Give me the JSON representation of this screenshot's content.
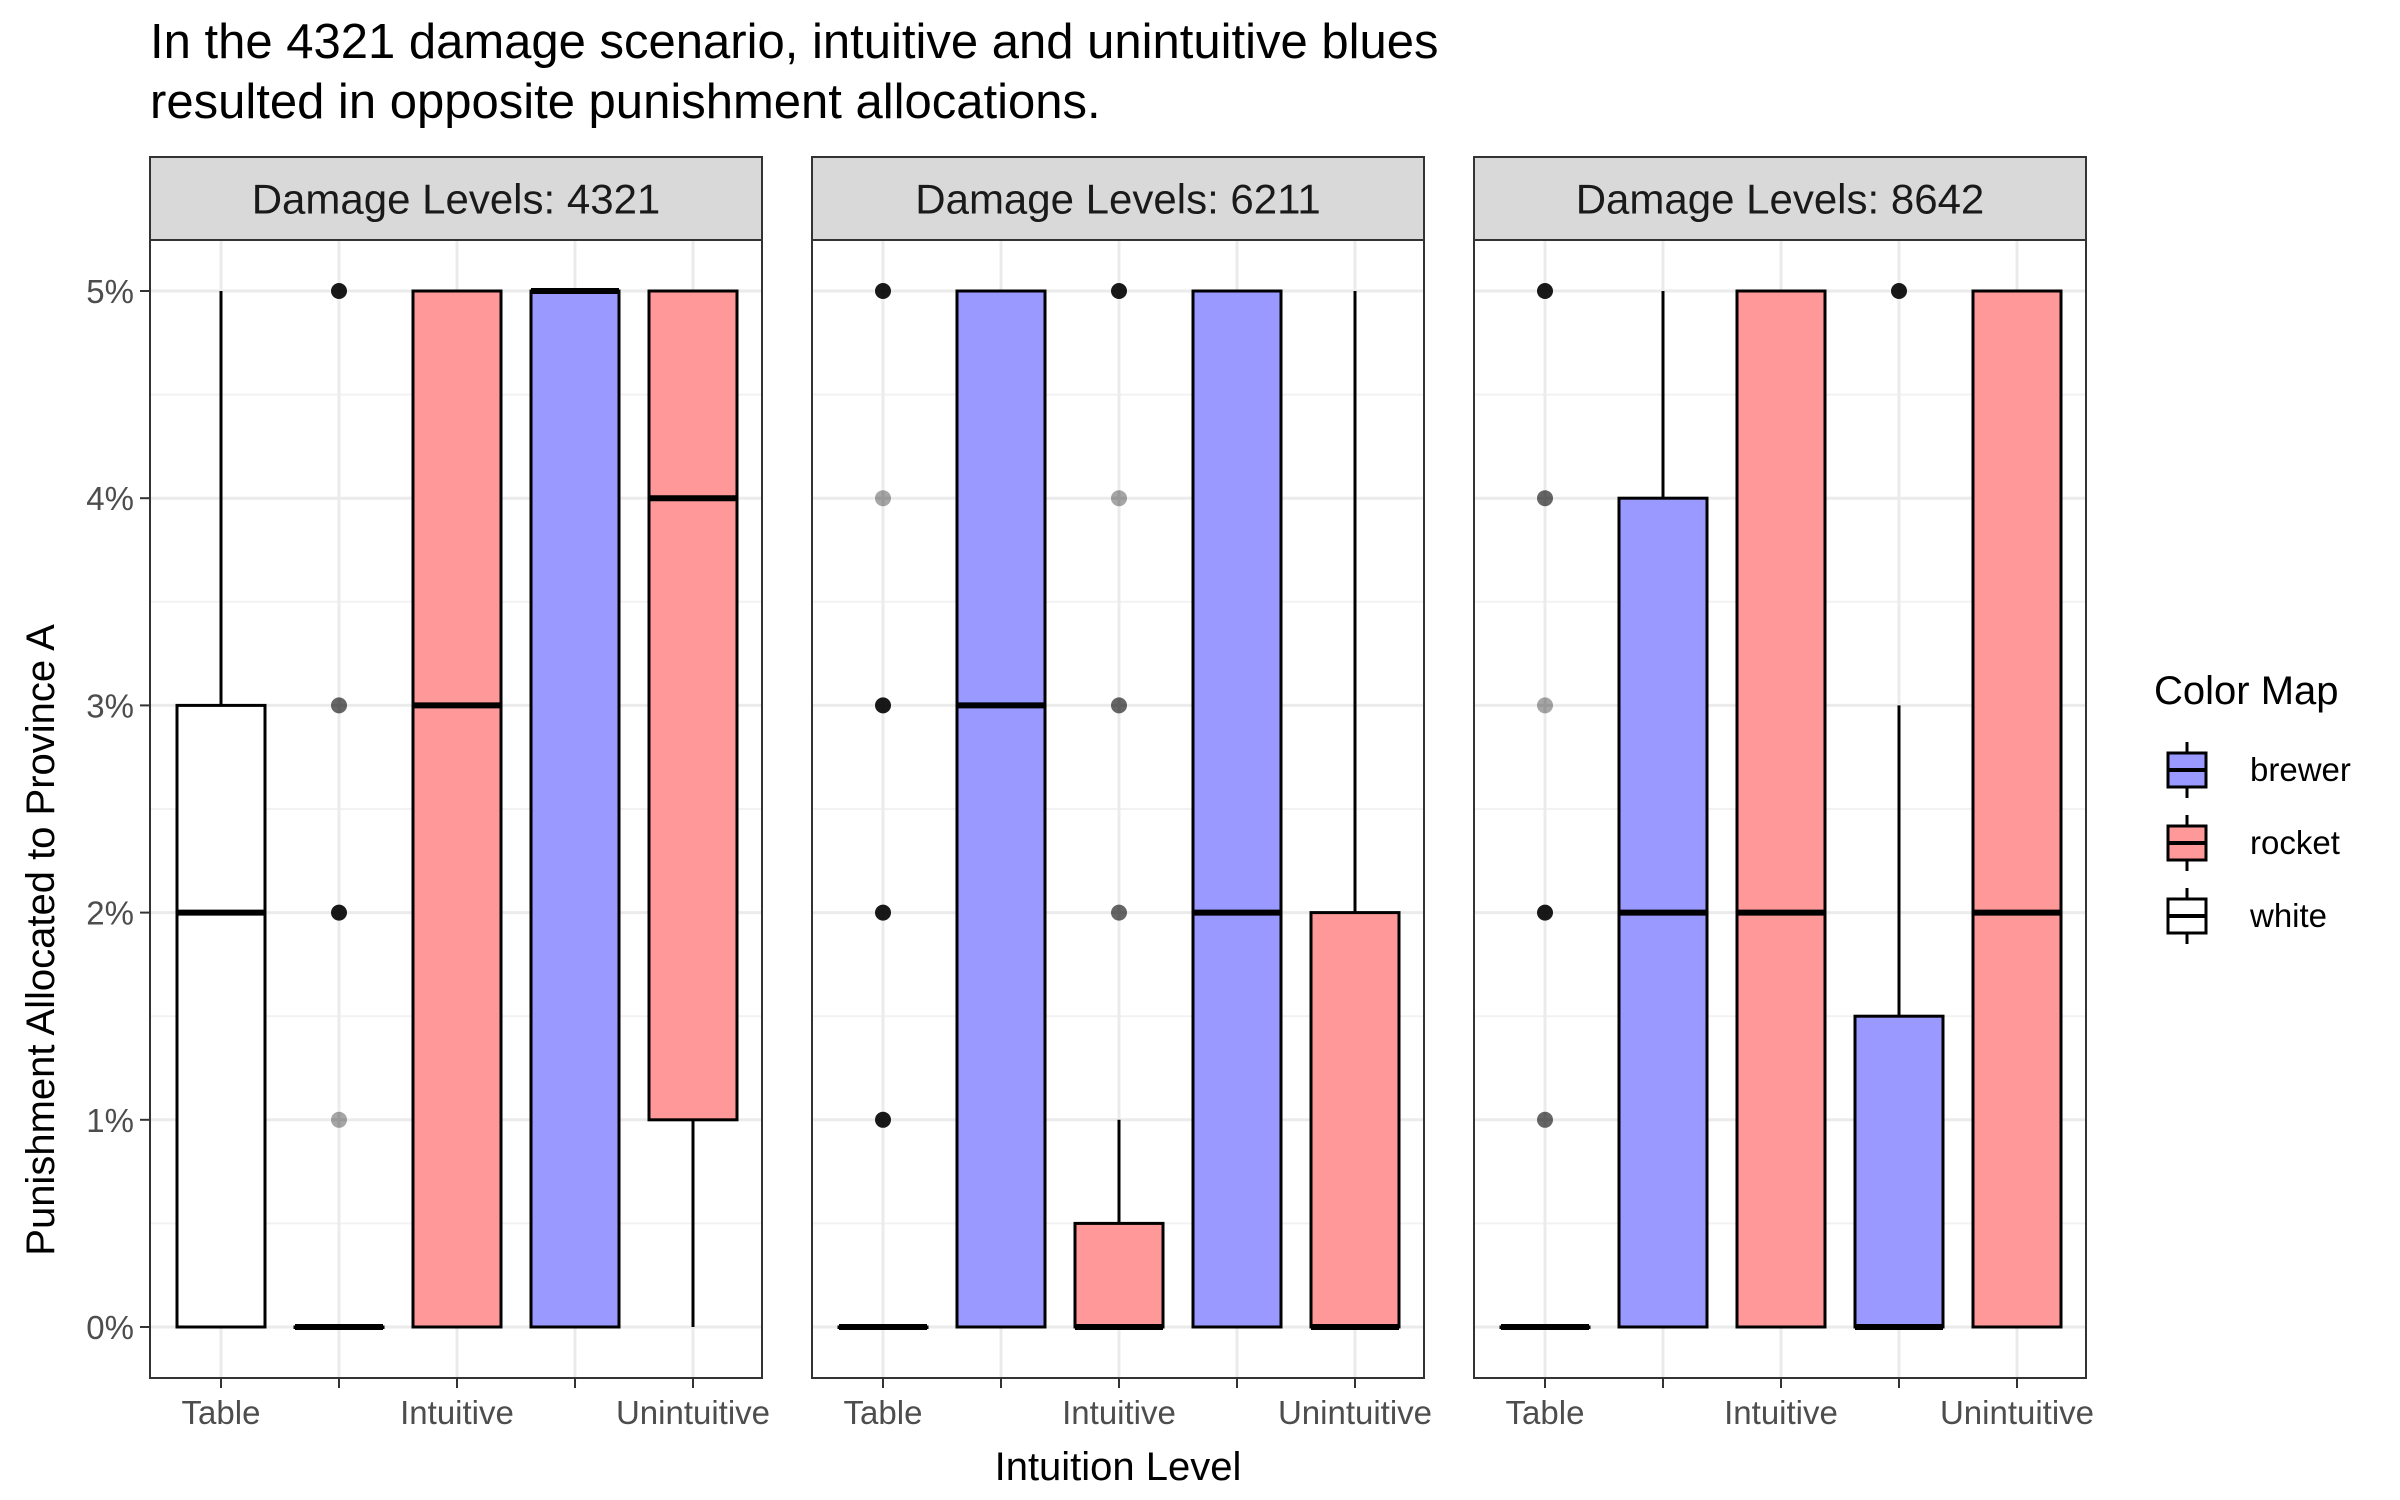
{
  "chart_data": {
    "type": "boxplot",
    "title_lines": [
      "In the 4321 damage scenario, intuitive and unintuitive blues",
      "resulted in opposite punishment allocations."
    ],
    "xlabel": "Intuition Level",
    "ylabel": "Punishment Allocated to Province A",
    "ylim": [
      0,
      5
    ],
    "y_ticks": [
      0,
      1,
      2,
      3,
      4,
      5
    ],
    "y_tick_labels": [
      "0%",
      "1%",
      "2%",
      "3%",
      "4%",
      "5%"
    ],
    "x_tick_labels": [
      "Table",
      "",
      "Intuitive",
      "",
      "Unintuitive"
    ],
    "grid": true,
    "legend": {
      "title": "Color Map",
      "position": "right",
      "entries": [
        {
          "label": "brewer",
          "color": "#9999ff"
        },
        {
          "label": "rocket",
          "color": "#ff9999"
        },
        {
          "label": "white",
          "color": "#ffffff"
        }
      ]
    },
    "colors": {
      "brewer": "#9999ff",
      "rocket": "#ff9999",
      "white": "#ffffff"
    },
    "panels": [
      {
        "strip": "Damage Levels: 4321",
        "boxes": [
          {
            "fill": "white",
            "q1": 0,
            "median": 2,
            "q3": 3,
            "lower": 0,
            "upper": 5,
            "outliers": []
          },
          {
            "fill": "white",
            "q1": 0,
            "median": 0,
            "q3": 0,
            "lower": 0,
            "upper": 0,
            "outliers": [
              {
                "y": 5,
                "o": 0.9
              },
              {
                "y": 3,
                "o": 0.6
              },
              {
                "y": 2,
                "o": 0.9
              },
              {
                "y": 1,
                "o": 0.35
              }
            ]
          },
          {
            "fill": "rocket",
            "q1": 0,
            "median": 3,
            "q3": 5,
            "lower": 0,
            "upper": 5,
            "outliers": []
          },
          {
            "fill": "brewer",
            "q1": 0,
            "median": 5,
            "q3": 5,
            "lower": 0,
            "upper": 5,
            "outliers": []
          },
          {
            "fill": "rocket",
            "q1": 1,
            "median": 4,
            "q3": 5,
            "lower": 0,
            "upper": 5,
            "outliers": []
          }
        ]
      },
      {
        "strip": "Damage Levels: 6211",
        "boxes": [
          {
            "fill": "white",
            "q1": 0,
            "median": 0,
            "q3": 0,
            "lower": 0,
            "upper": 0,
            "outliers": [
              {
                "y": 5,
                "o": 0.9
              },
              {
                "y": 4,
                "o": 0.35
              },
              {
                "y": 3,
                "o": 0.9
              },
              {
                "y": 2,
                "o": 0.9
              },
              {
                "y": 1,
                "o": 0.9
              }
            ]
          },
          {
            "fill": "brewer",
            "q1": 0,
            "median": 3,
            "q3": 5,
            "lower": 0,
            "upper": 5,
            "outliers": []
          },
          {
            "fill": "rocket",
            "q1": 0,
            "median": 0,
            "q3": 0.5,
            "lower": 0,
            "upper": 1,
            "outliers": [
              {
                "y": 5,
                "o": 0.9
              },
              {
                "y": 4,
                "o": 0.35
              },
              {
                "y": 3,
                "o": 0.6
              },
              {
                "y": 2,
                "o": 0.6
              }
            ]
          },
          {
            "fill": "brewer",
            "q1": 0,
            "median": 2,
            "q3": 5,
            "lower": 0,
            "upper": 5,
            "outliers": []
          },
          {
            "fill": "rocket",
            "q1": 0,
            "median": 0,
            "q3": 2,
            "lower": 0,
            "upper": 5,
            "outliers": []
          }
        ]
      },
      {
        "strip": "Damage Levels: 8642",
        "boxes": [
          {
            "fill": "white",
            "q1": 0,
            "median": 0,
            "q3": 0,
            "lower": 0,
            "upper": 0,
            "outliers": [
              {
                "y": 5,
                "o": 0.9
              },
              {
                "y": 4,
                "o": 0.6
              },
              {
                "y": 3,
                "o": 0.35
              },
              {
                "y": 2,
                "o": 0.9
              },
              {
                "y": 1,
                "o": 0.6
              }
            ]
          },
          {
            "fill": "brewer",
            "q1": 0,
            "median": 2,
            "q3": 4,
            "lower": 0,
            "upper": 5,
            "outliers": []
          },
          {
            "fill": "rocket",
            "q1": 0,
            "median": 2,
            "q3": 5,
            "lower": 0,
            "upper": 5,
            "outliers": []
          },
          {
            "fill": "brewer",
            "q1": 0,
            "median": 0,
            "q3": 1.5,
            "lower": 0,
            "upper": 3,
            "outliers": [
              {
                "y": 5,
                "o": 0.9
              }
            ]
          },
          {
            "fill": "rocket",
            "q1": 0,
            "median": 2,
            "q3": 5,
            "lower": 0,
            "upper": 5,
            "outliers": []
          }
        ]
      }
    ]
  }
}
